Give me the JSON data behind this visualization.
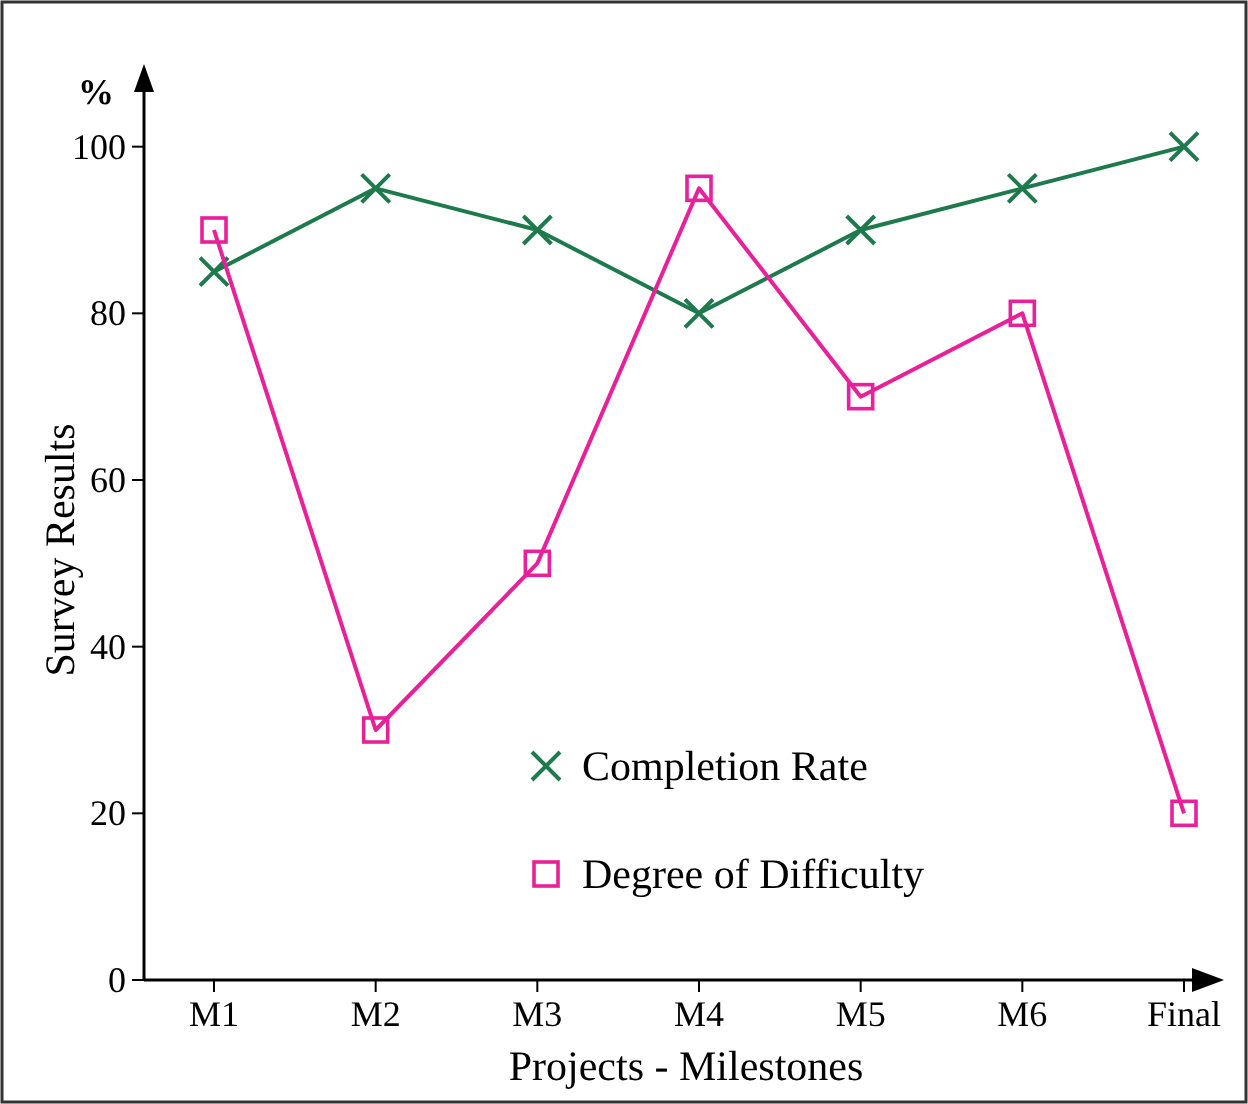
{
  "chart_data": {
    "type": "line",
    "xlabel": "Projects - Milestones",
    "ylabel": "Survey Results",
    "annotations": [
      "%"
    ],
    "categories": [
      "M1",
      "M2",
      "M3",
      "M4",
      "M5",
      "M6",
      "Final"
    ],
    "ylim": [
      0,
      108
    ],
    "yticks": [
      0,
      20,
      40,
      60,
      80,
      100
    ],
    "grid": false,
    "legend": "bottom",
    "series": [
      {
        "name": "Completion Rate",
        "color": "#1e7a4c",
        "marker": "cross",
        "values": [
          85,
          95,
          90,
          80,
          90,
          95,
          100
        ]
      },
      {
        "name": "Degree of Difficulty",
        "color": "#e8209a",
        "marker": "square",
        "values": [
          90,
          30,
          50,
          95,
          70,
          80,
          20
        ]
      }
    ]
  }
}
